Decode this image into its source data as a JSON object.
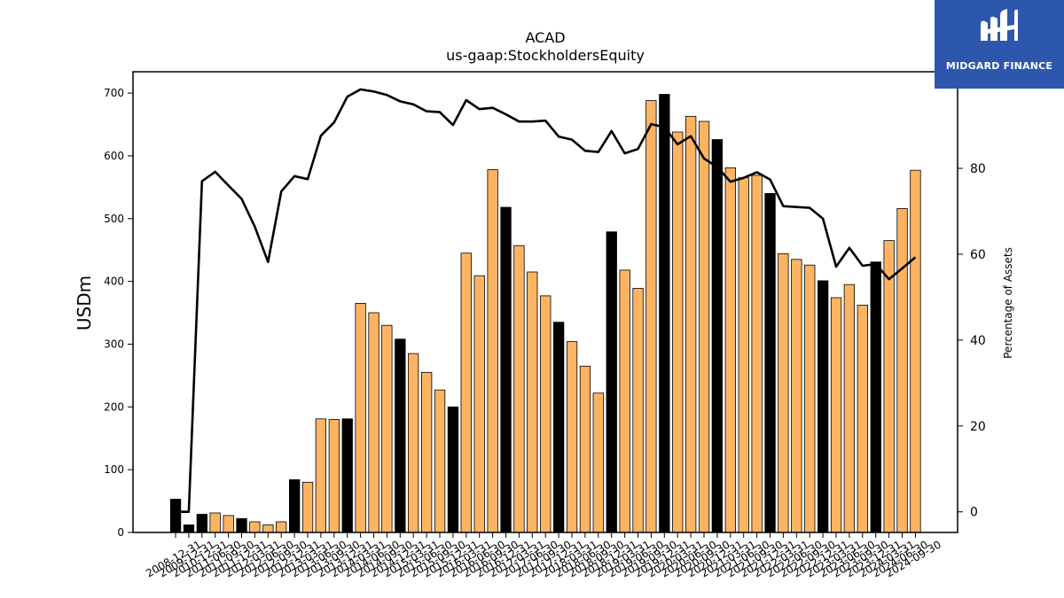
{
  "chart_data": {
    "type": "bar",
    "title": "ACAD",
    "subtitle": "us-gaap:StockholdersEquity",
    "ylabel": "USDm",
    "y2label": "Percentage of Assets",
    "ylim": [
      0,
      734
    ],
    "y2lim": [
      -4.8,
      102.5
    ],
    "yticks": [
      0,
      100,
      200,
      300,
      400,
      500,
      600,
      700
    ],
    "y2ticks": [
      0,
      20,
      40,
      60,
      80
    ],
    "colors": {
      "annual": "#000000",
      "quarter": "#fdb462",
      "line": "#000000"
    },
    "categories": [
      "2008-12-31",
      "2009-12-31",
      "2010-12-31",
      "2011-06-30",
      "2011-09-30",
      "2011-12-31",
      "2012-03-31",
      "2012-06-30",
      "2012-09-30",
      "2012-12-31",
      "2013-03-31",
      "2013-06-30",
      "2013-09-30",
      "2013-12-31",
      "2014-03-31",
      "2014-06-30",
      "2014-09-30",
      "2014-12-31",
      "2015-03-31",
      "2015-06-30",
      "2015-09-30",
      "2015-12-31",
      "2016-03-31",
      "2016-06-30",
      "2016-09-30",
      "2016-12-31",
      "2017-03-31",
      "2017-06-30",
      "2017-09-30",
      "2017-12-31",
      "2018-03-31",
      "2018-06-30",
      "2018-09-30",
      "2018-12-31",
      "2019-03-31",
      "2019-06-30",
      "2019-09-30",
      "2019-12-31",
      "2020-03-31",
      "2020-06-30",
      "2020-09-30",
      "2020-12-31",
      "2021-03-31",
      "2021-06-30",
      "2021-09-30",
      "2021-12-31",
      "2022-03-31",
      "2022-06-30",
      "2022-09-30",
      "2022-12-31",
      "2023-03-31",
      "2023-06-30",
      "2023-09-30",
      "2023-12-31",
      "2024-03-31",
      "2024-06-30",
      "2024-09-30"
    ],
    "annual": [
      true,
      true,
      true,
      false,
      false,
      true,
      false,
      false,
      false,
      true,
      false,
      false,
      false,
      true,
      false,
      false,
      false,
      true,
      false,
      false,
      false,
      true,
      false,
      false,
      false,
      true,
      false,
      false,
      false,
      true,
      false,
      false,
      false,
      true,
      false,
      false,
      false,
      true,
      false,
      false,
      false,
      true,
      false,
      false,
      false,
      true,
      false,
      false,
      false,
      true,
      false,
      false,
      false,
      true,
      false,
      false,
      false
    ],
    "series": [
      {
        "values": [
          53,
          12,
          29,
          31,
          27,
          22,
          17,
          12,
          17,
          84,
          80,
          181,
          180,
          181,
          365,
          350,
          330,
          308,
          285,
          255,
          227,
          200,
          445,
          409,
          578,
          518,
          457,
          415,
          377,
          335,
          304,
          265,
          222,
          479,
          418,
          389,
          688,
          698,
          638,
          663,
          655,
          626,
          581,
          565,
          569,
          540,
          444,
          435,
          426,
          401,
          374,
          395,
          362,
          431,
          465,
          516,
          577
        ]
      }
    ],
    "line": {
      "values": [
        0,
        0,
        77,
        79.2,
        76,
        72.9,
        66.4,
        58.2,
        74.6,
        78.2,
        77.5,
        87.6,
        90.7,
        96.7,
        98.4,
        97.9,
        97.1,
        95.6,
        94.9,
        93.3,
        93.1,
        90.1,
        95.9,
        93.8,
        94.1,
        92.6,
        90.9,
        90.9,
        91.1,
        87.4,
        86.7,
        84.1,
        83.8,
        88.7,
        83.5,
        84.5,
        90.3,
        89.6,
        85.6,
        87.5,
        82.3,
        80.3,
        76.9,
        77.8,
        79.1,
        77.4,
        71.2,
        71,
        70.8,
        68.3,
        57.1,
        61.5,
        57.3,
        57.7,
        54.2,
        56.7,
        59.3
      ]
    }
  }
}
